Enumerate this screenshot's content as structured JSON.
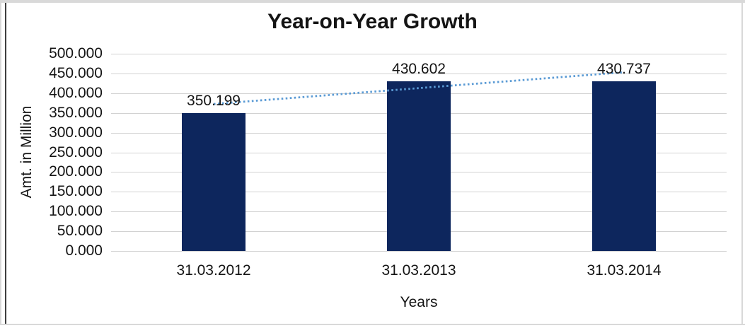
{
  "chart_data": {
    "type": "bar",
    "title": "Year-on-Year Growth",
    "xlabel": "Years",
    "ylabel": "Amt. in Million",
    "categories": [
      "31.03.2012",
      "31.03.2013",
      "31.03.2014"
    ],
    "values": [
      350.199,
      430.602,
      430.737
    ],
    "bar_labels": [
      "350.199",
      "430.602",
      "430.737"
    ],
    "ylim": [
      0,
      500
    ],
    "ytick_step": 50,
    "ytick_labels": [
      "500.000",
      "450.000",
      "400.000",
      "350.000",
      "300.000",
      "250.000",
      "200.000",
      "150.000",
      "100.000",
      "50.000",
      "0.000"
    ],
    "grid": true,
    "legend": "none",
    "trendline": {
      "type": "linear",
      "style": "dotted"
    },
    "colors": {
      "bar": "#0d265d",
      "trendline": "#5b9bd5",
      "gridline": "#d2d2d2",
      "text": "#141414",
      "frame_outer": "#d9d9d9",
      "frame_inner": "#3e3e3e",
      "background": "#ffffff"
    }
  }
}
